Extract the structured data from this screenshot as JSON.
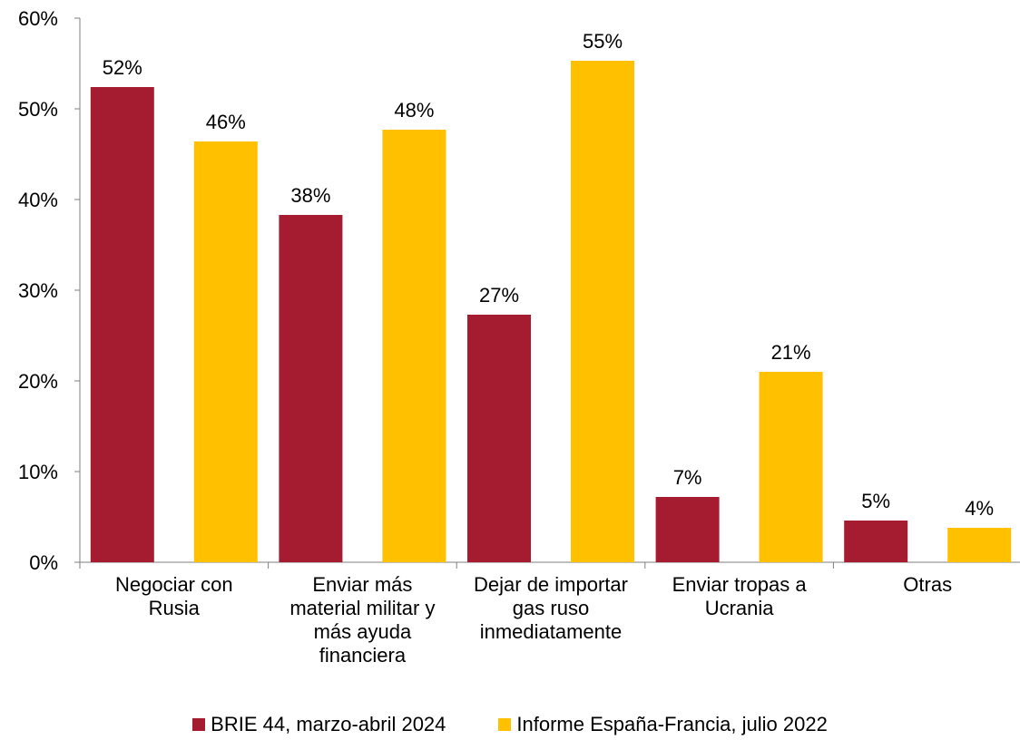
{
  "chart_data": {
    "type": "bar",
    "categories": [
      [
        "Negociar con",
        "Rusia"
      ],
      [
        "Enviar más",
        "material militar y",
        "más ayuda",
        "financiera"
      ],
      [
        "Dejar de importar",
        "gas ruso",
        "inmediatamente"
      ],
      [
        "Enviar tropas a",
        "Ucrania"
      ],
      [
        "Otras"
      ]
    ],
    "series": [
      {
        "name": "BRIE 44, marzo-abril 2024",
        "color": "#A51C30",
        "values": [
          52.4,
          38.3,
          27.3,
          7.2,
          4.6
        ],
        "labels": [
          "52%",
          "38%",
          "27%",
          "7%",
          "5%"
        ]
      },
      {
        "name": "Informe España-Francia, julio 2022",
        "color": "#FFC000",
        "values": [
          46.4,
          47.7,
          55.3,
          21.0,
          3.8
        ],
        "labels": [
          "46%",
          "48%",
          "55%",
          "21%",
          "4%"
        ]
      }
    ],
    "ylim": [
      0,
      60
    ],
    "yticks": [
      0,
      10,
      20,
      30,
      40,
      50,
      60
    ],
    "ytick_labels": [
      "0%",
      "10%",
      "20%",
      "30%",
      "40%",
      "50%",
      "60%"
    ],
    "grid": false,
    "legend_position": "bottom"
  }
}
